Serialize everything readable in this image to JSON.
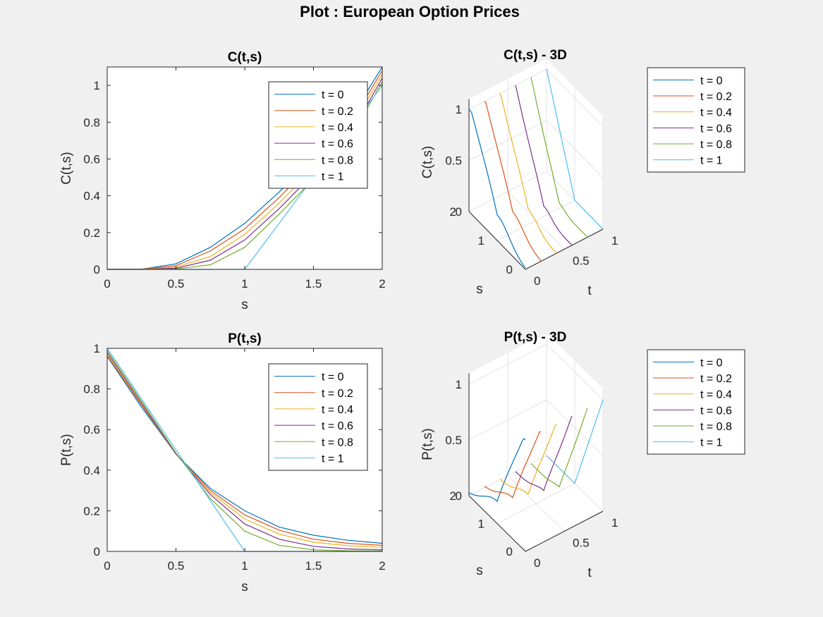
{
  "figure_title": "Plot : European Option Prices",
  "colors": [
    "#0072BD",
    "#D95319",
    "#EDB120",
    "#7E2F8E",
    "#77AC30",
    "#4DBEEE"
  ],
  "legend_entries": [
    "t = 0",
    "t = 0.2",
    "t = 0.4",
    "t = 0.6",
    "t = 0.8",
    "t = 1"
  ],
  "chart_data": [
    {
      "id": "call-2d",
      "type": "line",
      "title": "C(t,s)",
      "xlabel": "s",
      "ylabel": "C(t,s)",
      "xlim": [
        0,
        2
      ],
      "ylim": [
        0,
        1.1
      ],
      "xticks": [
        0,
        0.5,
        1,
        1.5,
        2
      ],
      "xtick_labels": [
        "0",
        "0.5",
        "1",
        "1.5",
        "2"
      ],
      "yticks": [
        0,
        0.2,
        0.4,
        0.6,
        0.8,
        1
      ],
      "ytick_labels": [
        "0",
        "0.2",
        "0.4",
        "0.6",
        "0.8",
        "1"
      ],
      "legend_position": "top-right",
      "x": [
        0,
        0.25,
        0.5,
        0.75,
        1,
        1.25,
        1.5,
        1.75,
        2
      ],
      "series": [
        {
          "name": "t = 0",
          "values": [
            0,
            0.001,
            0.03,
            0.12,
            0.25,
            0.42,
            0.61,
            0.8,
            1.1
          ]
        },
        {
          "name": "t = 0.2",
          "values": [
            0,
            0.001,
            0.02,
            0.1,
            0.22,
            0.39,
            0.58,
            0.77,
            1.08
          ]
        },
        {
          "name": "t = 0.4",
          "values": [
            0,
            0,
            0.012,
            0.07,
            0.19,
            0.36,
            0.55,
            0.74,
            1.06
          ]
        },
        {
          "name": "t = 0.6",
          "values": [
            0,
            0,
            0.006,
            0.05,
            0.16,
            0.33,
            0.52,
            0.71,
            1.04
          ]
        },
        {
          "name": "t = 0.8",
          "values": [
            0,
            0,
            0.002,
            0.025,
            0.12,
            0.3,
            0.49,
            0.69,
            1.02
          ]
        },
        {
          "name": "t = 1",
          "values": [
            0,
            0,
            0,
            0,
            0,
            0.25,
            0.5,
            0.75,
            1.0
          ]
        }
      ]
    },
    {
      "id": "call-3d",
      "type": "line",
      "title": "C(t,s) - 3D",
      "xlabel": "t",
      "ylabel": "s",
      "zlabel": "C(t,s)",
      "xticks": [
        "0",
        "0.5",
        "1"
      ],
      "yticks": [
        "0",
        "1",
        "2"
      ],
      "zticks": [
        "0",
        "0.5",
        "1"
      ],
      "legend_position": "outside-right"
    },
    {
      "id": "put-2d",
      "type": "line",
      "title": "P(t,s)",
      "xlabel": "s",
      "ylabel": "P(t,s)",
      "xlim": [
        0,
        2
      ],
      "ylim": [
        0,
        1
      ],
      "xticks": [
        0,
        0.5,
        1,
        1.5,
        2
      ],
      "xtick_labels": [
        "0",
        "0.5",
        "1",
        "1.5",
        "2"
      ],
      "yticks": [
        0,
        0.2,
        0.4,
        0.6,
        0.8,
        1
      ],
      "ytick_labels": [
        "0",
        "0.2",
        "0.4",
        "0.6",
        "0.8",
        "1"
      ],
      "legend_position": "top-right",
      "x": [
        0,
        0.25,
        0.5,
        0.75,
        1,
        1.25,
        1.5,
        1.75,
        2
      ],
      "series": [
        {
          "name": "t = 0",
          "values": [
            0.96,
            0.71,
            0.48,
            0.31,
            0.2,
            0.12,
            0.08,
            0.055,
            0.04
          ]
        },
        {
          "name": "t = 0.2",
          "values": [
            0.965,
            0.72,
            0.48,
            0.3,
            0.18,
            0.105,
            0.06,
            0.04,
            0.03
          ]
        },
        {
          "name": "t = 0.4",
          "values": [
            0.97,
            0.725,
            0.48,
            0.29,
            0.16,
            0.085,
            0.045,
            0.028,
            0.02
          ]
        },
        {
          "name": "t = 0.6",
          "values": [
            0.98,
            0.73,
            0.48,
            0.28,
            0.135,
            0.06,
            0.025,
            0.012,
            0.008
          ]
        },
        {
          "name": "t = 0.8",
          "values": [
            0.99,
            0.74,
            0.485,
            0.26,
            0.1,
            0.03,
            0.008,
            0.003,
            0.002
          ]
        },
        {
          "name": "t = 1",
          "values": [
            1.0,
            0.75,
            0.5,
            0.25,
            0,
            0,
            0,
            0,
            0
          ]
        }
      ]
    },
    {
      "id": "put-3d",
      "type": "line",
      "title": "P(t,s) - 3D",
      "xlabel": "t",
      "ylabel": "s",
      "zlabel": "P(t,s)",
      "xticks": [
        "0",
        "0.5",
        "1"
      ],
      "yticks": [
        "0",
        "1",
        "2"
      ],
      "zticks": [
        "0",
        "0.5",
        "1"
      ],
      "legend_position": "outside-right"
    }
  ]
}
